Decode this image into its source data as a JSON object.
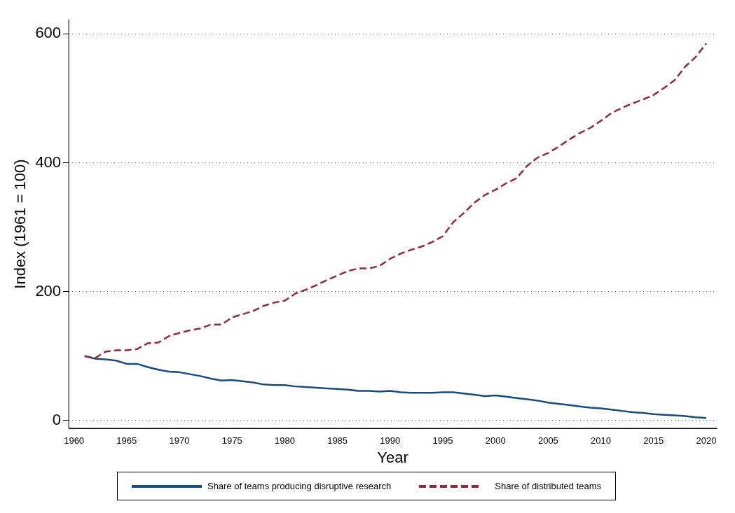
{
  "chart_data": {
    "type": "line",
    "xlabel": "Year",
    "ylabel": "Index (1961 = 100)",
    "x": [
      1961,
      1962,
      1963,
      1964,
      1965,
      1966,
      1967,
      1968,
      1969,
      1970,
      1971,
      1972,
      1973,
      1974,
      1975,
      1976,
      1977,
      1978,
      1979,
      1980,
      1981,
      1982,
      1983,
      1984,
      1985,
      1986,
      1987,
      1988,
      1989,
      1990,
      1991,
      1992,
      1993,
      1994,
      1995,
      1996,
      1997,
      1998,
      1999,
      2000,
      2001,
      2002,
      2003,
      2004,
      2005,
      2006,
      2007,
      2008,
      2009,
      2010,
      2011,
      2012,
      2013,
      2014,
      2015,
      2016,
      2017,
      2018,
      2019,
      2020
    ],
    "series": [
      {
        "name": "Share of teams producing disruptive research",
        "color": "#1a4a7a",
        "line_style": "solid",
        "values": [
          100,
          96,
          95,
          93,
          88,
          88,
          83,
          79,
          76,
          75,
          72,
          69,
          65,
          62,
          63,
          61,
          59,
          56,
          55,
          55,
          53,
          52,
          51,
          50,
          49,
          48,
          46,
          46,
          45,
          46,
          44,
          43,
          43,
          43,
          44,
          44,
          42,
          40,
          38,
          39,
          37,
          35,
          33,
          31,
          28,
          26,
          24,
          22,
          20,
          19,
          17,
          15,
          13,
          12,
          10,
          9,
          8,
          7,
          5,
          4
        ]
      },
      {
        "name": "Share of distributed teams",
        "color": "#8b2e3a",
        "line_style": "dashed",
        "values": [
          100,
          97,
          107,
          109,
          109,
          111,
          120,
          121,
          131,
          136,
          140,
          143,
          149,
          149,
          160,
          165,
          170,
          178,
          183,
          186,
          197,
          203,
          210,
          218,
          225,
          232,
          236,
          236,
          240,
          251,
          259,
          265,
          270,
          277,
          286,
          308,
          322,
          338,
          350,
          358,
          368,
          376,
          395,
          408,
          415,
          425,
          436,
          446,
          454,
          465,
          477,
          485,
          492,
          498,
          505,
          516,
          528,
          549,
          564,
          585
        ]
      }
    ],
    "xlim": [
      1959.5,
      2021
    ],
    "xticks": [
      1960,
      1965,
      1970,
      1975,
      1980,
      1985,
      1990,
      1995,
      2000,
      2005,
      2010,
      2015,
      2020
    ],
    "ylim": [
      -12,
      622
    ],
    "yticks": [
      0,
      200,
      400,
      600
    ],
    "grid": "y",
    "legend": "bottom",
    "marker": "none"
  }
}
